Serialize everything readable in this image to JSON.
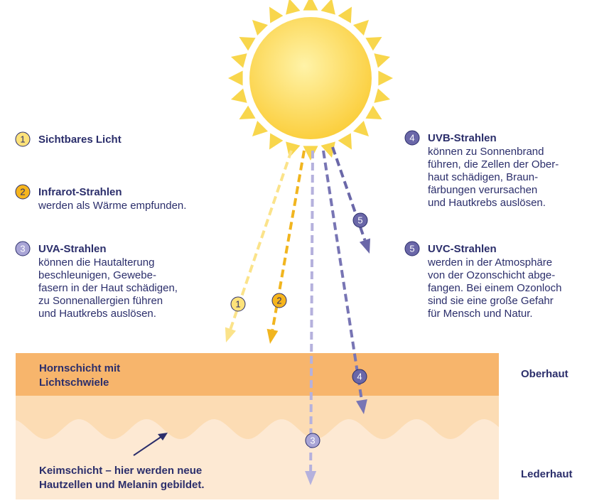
{
  "legend": [
    {
      "number": "1",
      "title": "Sichtbares Licht"
    },
    {
      "number": "2",
      "title": "Infrarot-Strahlen",
      "text": [
        "werden als Wärme empfunden."
      ]
    },
    {
      "number": "3",
      "title": "UVA-Strahlen",
      "text": [
        "können die Hautalterung",
        "beschleunigen, Gewebe-",
        "fasern in der Haut schädigen,",
        "zu Sonnenallergien führen",
        "und Hautkrebs auslösen."
      ]
    },
    {
      "number": "4",
      "title": "UVB-Strahlen",
      "text": [
        "können zu Sonnenbrand",
        "führen, die Zellen der Ober-",
        "haut schädigen, Braun-",
        "färbungen verursachen",
        "und Hautkrebs auslösen."
      ]
    },
    {
      "number": "5",
      "title": "UVC-Strahlen",
      "text": [
        "werden in der Atmosphäre",
        "von der Ozonschicht abge-",
        "fangen. Bei einem Ozonloch",
        "sind sie eine große Gefahr",
        "für Mensch und Natur."
      ]
    }
  ],
  "layers": {
    "horn": [
      "Hornschicht mit",
      "Lichtschwiele"
    ],
    "outer": "Oberhaut",
    "inner": "Lederhaut",
    "germinal": [
      "Keimschicht – hier werden neue",
      "Hautzellen und Melanin gebildet."
    ]
  }
}
